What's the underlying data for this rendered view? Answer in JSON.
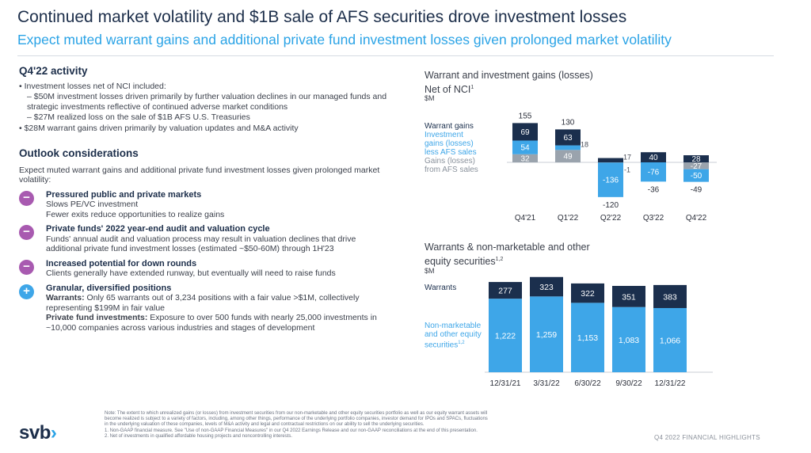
{
  "header": {
    "title": "Continued market volatility and $1B sale of AFS securities drove investment losses",
    "subtitle": "Expect muted warrant gains and additional private fund investment losses given prolonged market volatility"
  },
  "activity": {
    "heading": "Q4'22 activity",
    "bullet1": "• Investment losses net of NCI included:",
    "sub1": "– $50M investment losses driven primarily by further valuation declines in our managed funds and strategic investments reflective of continued adverse market conditions",
    "sub2": "– $27M realized loss on the sale of $1B AFS U.S. Treasuries",
    "bullet2": "• $28M warrant gains driven primarily by valuation updates and M&A activity"
  },
  "outlook": {
    "heading": "Outlook considerations",
    "intro": "Expect muted warrant gains and additional private fund investment losses given prolonged market volatility:",
    "items": [
      {
        "symbol": "−",
        "title": "Pressured public and private markets",
        "l1": "Slows PE/VC investment",
        "l2": "Fewer exits reduce opportunities to realize gains"
      },
      {
        "symbol": "−",
        "title": "Private funds' 2022 year-end audit and valuation cycle",
        "l1": "Funds' annual audit and valuation process may result in valuation declines that drive additional private fund investment losses (estimated ~$50-60M) through 1H'23"
      },
      {
        "symbol": "−",
        "title": "Increased potential for down rounds",
        "l1": "Clients generally have extended runway, but eventually will need to raise funds"
      },
      {
        "symbol": "+",
        "title": "Granular, diversified positions",
        "w_label": "Warrants:",
        "w_text": " Only 65 warrants out of 3,234 positions with a fair value >$1M, collectively representing $199M in fair value",
        "p_label": "Private fund investments:",
        "p_text": " Exposure to over 500 funds with nearly 25,000 investments in ~10,000 companies across various industries and stages of development"
      }
    ]
  },
  "chart1_text": {
    "title1": "Warrant and investment gains (losses)",
    "title2": "Net of NCI",
    "sup": "1",
    "unit": "$M"
  },
  "chart2_text": {
    "title1": "Warrants & non-marketable and other",
    "title2": "equity securities",
    "sup": "1,2",
    "unit": "$M"
  },
  "chart_data": [
    {
      "type": "bar",
      "title": "Warrant and investment gains (losses) Net of NCI",
      "ylabel": "$M",
      "categories": [
        "Q4'21",
        "Q1'22",
        "Q2'22",
        "Q3'22",
        "Q4'22"
      ],
      "series": [
        {
          "name": "Warrant gains",
          "values": [
            69,
            63,
            17,
            40,
            28
          ]
        },
        {
          "name": "Investment gains (losses) less AFS sales",
          "values": [
            54,
            18,
            -136,
            -76,
            -50
          ]
        },
        {
          "name": "Gains (losses) from AFS sales",
          "values": [
            32,
            49,
            -1,
            0,
            -27
          ]
        }
      ],
      "totals": [
        155,
        130,
        -120,
        -36,
        -49
      ],
      "total_labels": [
        "155",
        "130",
        "-120",
        "-36",
        "-49"
      ],
      "segment_labels": [
        [
          "69",
          "54",
          "32"
        ],
        [
          "63",
          "18",
          "49"
        ],
        [
          "17",
          "-136",
          "-1"
        ],
        [
          "40",
          "-76",
          ""
        ],
        [
          "28",
          "-50",
          "-27"
        ]
      ],
      "colors": {
        "warrant": "#1b2f4d",
        "investment": "#3ea6e8",
        "afs": "#9aa3ad"
      }
    },
    {
      "type": "bar",
      "title": "Warrants & non-marketable and other equity securities",
      "ylabel": "$M",
      "categories": [
        "12/31/21",
        "3/31/22",
        "6/30/22",
        "9/30/22",
        "12/31/22"
      ],
      "series": [
        {
          "name": "Non-marketable and other equity securities",
          "values": [
            1222,
            1259,
            1153,
            1083,
            1066
          ]
        },
        {
          "name": "Warrants",
          "values": [
            277,
            323,
            322,
            351,
            383
          ]
        }
      ],
      "value_labels": {
        "nonmarketable": [
          "1,222",
          "1,259",
          "1,153",
          "1,083",
          "1,066"
        ],
        "warrants": [
          "277",
          "323",
          "322",
          "351",
          "383"
        ]
      },
      "colors": {
        "warrants": "#1b2f4d",
        "nonmarketable": "#3ea6e8"
      }
    }
  ],
  "legend1": {
    "warrant": "Warrant gains",
    "inv1": "Investment",
    "inv2": "gains (losses)",
    "inv3": "less AFS sales",
    "afs1": "Gains (losses)",
    "afs2": "from AFS sales"
  },
  "legend2": {
    "warrants": "Warrants",
    "nm1": "Non-marketable",
    "nm2": "and other equity",
    "nm3": "securities",
    "nm_sup": "1,2"
  },
  "notes": {
    "line1": "Note: The extent to which unrealized gains (or losses) from investment securities from our non-marketable and other equity securities portfolio as well as our equity warrant assets will",
    "line2": "become realized is subject to a variety of factors, including, among other things, performance of the underlying portfolio companies, investor demand for IPOs and SPACs, fluctuations",
    "line3": "in the underlying valuation of these companies, levels of M&A activity and legal and contractual restrictions on our ability to sell the underlying securities.",
    "line4": "1. Non-GAAP financial measure. See \"Use of non-GAAP Financial Measures\" in our Q4 2022 Earnings Release and our non-GAAP reconciliations at the end of this presentation.",
    "line5": "2. Net of investments in qualified affordable housing projects and noncontrolling interests."
  },
  "footer": {
    "logo": "svb",
    "logo_mark": "›",
    "text": "Q4 2022 FINANCIAL HIGHLIGHTS"
  }
}
